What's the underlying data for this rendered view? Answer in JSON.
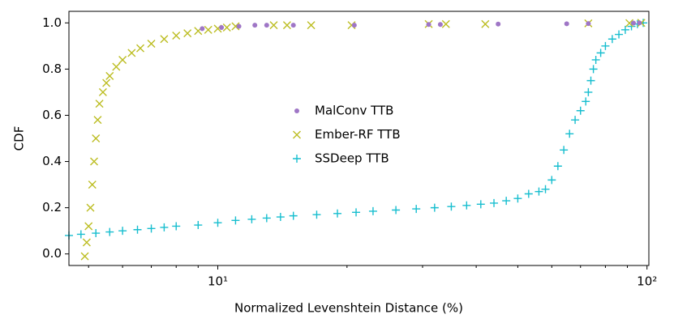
{
  "chart_data": {
    "type": "scatter",
    "xlabel": "Normalized Levenshtein Distance (%)",
    "ylabel": "CDF",
    "xscale": "log",
    "xlim": [
      4.5,
      101
    ],
    "ylim": [
      -0.05,
      1.05
    ],
    "xticks": [
      {
        "value": 10,
        "label": "10¹"
      },
      {
        "value": 100,
        "label": "10²"
      }
    ],
    "xminorticks": [
      5,
      6,
      7,
      8,
      9,
      20,
      30,
      40,
      50,
      60,
      70,
      80,
      90
    ],
    "yticks": [
      {
        "value": 0,
        "label": "0.0"
      },
      {
        "value": 0.2,
        "label": "0.2"
      },
      {
        "value": 0.4,
        "label": "0.4"
      },
      {
        "value": 0.6,
        "label": "0.6"
      },
      {
        "value": 0.8,
        "label": "0.8"
      },
      {
        "value": 1,
        "label": "1.0"
      }
    ],
    "legend": "center",
    "series": [
      {
        "name": "MalConv TTB",
        "color": "#9f76c6",
        "marker": "dot",
        "x": [
          9.2,
          10.2,
          11.2,
          12.2,
          13,
          15,
          20.8,
          31,
          33,
          45,
          65,
          73,
          93,
          96
        ],
        "y": [
          0.975,
          0.98,
          0.985,
          0.99,
          0.99,
          0.99,
          0.99,
          0.993,
          0.993,
          0.995,
          0.996,
          0.997,
          0.999,
          1.0
        ]
      },
      {
        "name": "Ember-RF TTB",
        "color": "#bcbd22",
        "marker": "x",
        "x": [
          4.9,
          4.95,
          5.0,
          5.05,
          5.1,
          5.15,
          5.2,
          5.25,
          5.3,
          5.4,
          5.5,
          5.6,
          5.8,
          6.0,
          6.3,
          6.6,
          7.0,
          7.5,
          8,
          8.5,
          9,
          9.5,
          10,
          10.5,
          11,
          13.5,
          14.5,
          16.5,
          20.5,
          31,
          34,
          42,
          73,
          91,
          97
        ],
        "y": [
          -0.01,
          0.05,
          0.12,
          0.2,
          0.3,
          0.4,
          0.5,
          0.58,
          0.65,
          0.7,
          0.74,
          0.77,
          0.81,
          0.84,
          0.87,
          0.89,
          0.91,
          0.93,
          0.945,
          0.955,
          0.965,
          0.97,
          0.975,
          0.98,
          0.985,
          0.99,
          0.99,
          0.99,
          0.99,
          0.995,
          0.995,
          0.995,
          0.998,
          0.999,
          1.0
        ]
      },
      {
        "name": "SSDeep TTB",
        "color": "#17becf",
        "marker": "plus",
        "x": [
          4.5,
          4.8,
          5.2,
          5.6,
          6.0,
          6.5,
          7,
          7.5,
          8,
          9,
          10,
          11,
          12,
          13,
          14,
          15,
          17,
          19,
          21,
          23,
          26,
          29,
          32,
          35,
          38,
          41,
          44,
          47,
          50,
          53,
          56,
          58,
          60,
          62,
          64,
          66,
          68,
          70,
          72,
          73,
          74,
          75,
          76,
          78,
          80,
          83,
          86,
          89,
          92,
          95,
          98
        ],
        "y": [
          0.08,
          0.085,
          0.09,
          0.095,
          0.1,
          0.105,
          0.11,
          0.115,
          0.12,
          0.125,
          0.135,
          0.145,
          0.15,
          0.155,
          0.16,
          0.165,
          0.17,
          0.175,
          0.18,
          0.185,
          0.19,
          0.195,
          0.2,
          0.205,
          0.21,
          0.215,
          0.22,
          0.23,
          0.24,
          0.26,
          0.27,
          0.28,
          0.32,
          0.38,
          0.45,
          0.52,
          0.58,
          0.62,
          0.66,
          0.7,
          0.75,
          0.8,
          0.84,
          0.87,
          0.9,
          0.93,
          0.95,
          0.97,
          0.985,
          0.995,
          1.0
        ]
      }
    ]
  }
}
